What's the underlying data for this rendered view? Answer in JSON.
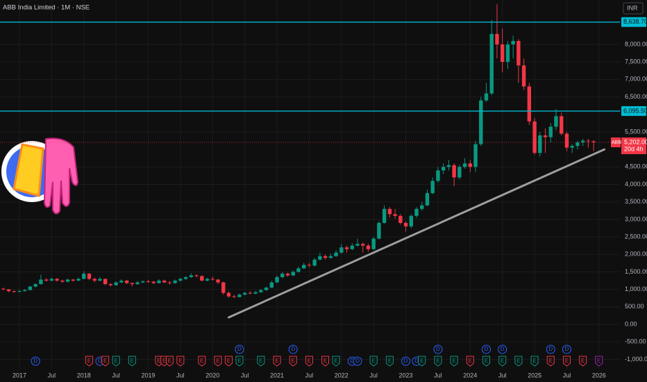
{
  "chart_data": {
    "type": "candlestick",
    "title": "ABB India Limited · 1M · NSE",
    "currency": "INR",
    "up_color": "#089981",
    "down_color": "#f23645",
    "line_color": "#00bcd4",
    "ylim": [
      -1250,
      9270
    ],
    "yticks": [
      {
        "value": -1000,
        "label": "-1,000.00"
      },
      {
        "value": -500,
        "label": "-500.00"
      },
      {
        "value": 0,
        "label": "0.00"
      },
      {
        "value": 500,
        "label": "500.00"
      },
      {
        "value": 1000,
        "label": "1,000.00"
      },
      {
        "value": 1500,
        "label": "1,500.00"
      },
      {
        "value": 2000,
        "label": "2,000.00"
      },
      {
        "value": 2500,
        "label": "2,500.00"
      },
      {
        "value": 3000,
        "label": "3,000.00"
      },
      {
        "value": 3500,
        "label": "3,500.00"
      },
      {
        "value": 4000,
        "label": "4,000.00"
      },
      {
        "value": 4500,
        "label": "4,500.00"
      },
      {
        "value": 5500,
        "label": "5,500.00"
      },
      {
        "value": 6500,
        "label": "6,500.00"
      },
      {
        "value": 7000,
        "label": "7,000.00"
      },
      {
        "value": 7500,
        "label": "7,500.00"
      },
      {
        "value": 8000,
        "label": "8,000.00"
      }
    ],
    "xticks": [
      {
        "value": "2017-01",
        "label": "2017"
      },
      {
        "value": "2017-07",
        "label": "Jul"
      },
      {
        "value": "2018-01",
        "label": "2018"
      },
      {
        "value": "2018-07",
        "label": "Jul"
      },
      {
        "value": "2019-01",
        "label": "2019"
      },
      {
        "value": "2019-07",
        "label": "Jul"
      },
      {
        "value": "2020-01",
        "label": "2020"
      },
      {
        "value": "2020-07",
        "label": "Jul"
      },
      {
        "value": "2021-01",
        "label": "2021"
      },
      {
        "value": "2021-07",
        "label": "Jul"
      },
      {
        "value": "2022-01",
        "label": "2022"
      },
      {
        "value": "2022-07",
        "label": "Jul"
      },
      {
        "value": "2023-01",
        "label": "2023"
      },
      {
        "value": "2023-07",
        "label": "Jul"
      },
      {
        "value": "2024-01",
        "label": "2024"
      },
      {
        "value": "2024-07",
        "label": "Jul"
      },
      {
        "value": "2025-01",
        "label": "2025"
      },
      {
        "value": "2025-07",
        "label": "Jul"
      },
      {
        "value": "2026-01",
        "label": "2026"
      }
    ],
    "x": [
      "2016-10",
      "2016-11",
      "2016-12",
      "2017-01",
      "2017-02",
      "2017-03",
      "2017-04",
      "2017-05",
      "2017-06",
      "2017-07",
      "2017-08",
      "2017-09",
      "2017-10",
      "2017-11",
      "2017-12",
      "2018-01",
      "2018-02",
      "2018-03",
      "2018-04",
      "2018-05",
      "2018-06",
      "2018-07",
      "2018-08",
      "2018-09",
      "2018-10",
      "2018-11",
      "2018-12",
      "2019-01",
      "2019-02",
      "2019-03",
      "2019-04",
      "2019-05",
      "2019-06",
      "2019-07",
      "2019-08",
      "2019-09",
      "2019-10",
      "2019-11",
      "2019-12",
      "2020-01",
      "2020-02",
      "2020-03",
      "2020-04",
      "2020-05",
      "2020-06",
      "2020-07",
      "2020-08",
      "2020-09",
      "2020-10",
      "2020-11",
      "2020-12",
      "2021-01",
      "2021-02",
      "2021-03",
      "2021-04",
      "2021-05",
      "2021-06",
      "2021-07",
      "2021-08",
      "2021-09",
      "2021-10",
      "2021-11",
      "2021-12",
      "2022-01",
      "2022-02",
      "2022-03",
      "2022-04",
      "2022-05",
      "2022-06",
      "2022-07",
      "2022-08",
      "2022-09",
      "2022-10",
      "2022-11",
      "2022-12",
      "2023-01",
      "2023-02",
      "2023-03",
      "2023-04",
      "2023-05",
      "2023-06",
      "2023-07",
      "2023-08",
      "2023-09",
      "2023-10",
      "2023-11",
      "2023-12",
      "2024-01",
      "2024-02",
      "2024-03",
      "2024-04",
      "2024-05",
      "2024-06",
      "2024-07",
      "2024-08",
      "2024-09",
      "2024-10",
      "2024-11",
      "2024-12",
      "2025-01",
      "2025-02",
      "2025-03",
      "2025-04",
      "2025-05",
      "2025-06",
      "2025-07",
      "2025-08",
      "2025-09",
      "2025-10",
      "2025-11",
      "2025-12"
    ],
    "open": [
      1020,
      1000,
      950,
      930,
      950,
      980,
      1080,
      1150,
      1280,
      1250,
      1300,
      1250,
      1220,
      1280,
      1250,
      1300,
      1450,
      1300,
      1250,
      1300,
      1150,
      1120,
      1200,
      1250,
      1180,
      1150,
      1200,
      1230,
      1220,
      1180,
      1250,
      1200,
      1180,
      1250,
      1300,
      1350,
      1400,
      1380,
      1250,
      1300,
      1280,
      1200,
      900,
      800,
      780,
      850,
      900,
      880,
      920,
      980,
      1050,
      1200,
      1350,
      1450,
      1400,
      1500,
      1600,
      1700,
      1680,
      1850,
      1950,
      1900,
      1950,
      2050,
      2200,
      2150,
      2250,
      2300,
      2250,
      2150,
      2450,
      2900,
      3300,
      3150,
      3100,
      2900,
      2800,
      3100,
      3300,
      3400,
      3750,
      4100,
      4400,
      4500,
      4550,
      4200,
      4500,
      4600,
      4500,
      5150,
      6400,
      6600,
      8300,
      8000,
      7500,
      8000,
      8100,
      7400,
      6800,
      5800,
      4900,
      5400,
      5350,
      5650,
      5950,
      5450,
      5050,
      5100,
      5200,
      5250,
      5230
    ],
    "high": [
      1050,
      1010,
      970,
      980,
      1010,
      1100,
      1180,
      1420,
      1320,
      1340,
      1330,
      1280,
      1310,
      1300,
      1340,
      1520,
      1460,
      1340,
      1350,
      1310,
      1180,
      1230,
      1290,
      1270,
      1200,
      1240,
      1260,
      1270,
      1240,
      1290,
      1280,
      1240,
      1280,
      1330,
      1380,
      1460,
      1430,
      1400,
      1330,
      1360,
      1300,
      1220,
      940,
      850,
      880,
      930,
      950,
      960,
      1010,
      1080,
      1240,
      1400,
      1500,
      1480,
      1540,
      1650,
      1760,
      1760,
      1900,
      2050,
      2000,
      2020,
      2120,
      2300,
      2250,
      2320,
      2450,
      2340,
      2300,
      2500,
      2950,
      3400,
      3350,
      3300,
      3150,
      2950,
      3150,
      3350,
      3500,
      3850,
      4200,
      4500,
      4600,
      4700,
      4600,
      4560,
      4750,
      4700,
      5250,
      6500,
      6900,
      8700,
      9150,
      8450,
      8100,
      8250,
      8150,
      7600,
      6900,
      5900,
      5500,
      5600,
      5750,
      6150,
      6050,
      5500,
      5150,
      5250,
      5300,
      5300,
      5260
    ],
    "low": [
      980,
      920,
      900,
      910,
      940,
      970,
      1060,
      1140,
      1220,
      1230,
      1220,
      1190,
      1200,
      1220,
      1240,
      1290,
      1260,
      1200,
      1230,
      1120,
      1080,
      1100,
      1180,
      1150,
      1080,
      1130,
      1180,
      1190,
      1150,
      1170,
      1180,
      1130,
      1160,
      1220,
      1270,
      1330,
      1340,
      1230,
      1230,
      1250,
      1150,
      850,
      760,
      750,
      770,
      830,
      860,
      860,
      900,
      960,
      1040,
      1180,
      1320,
      1360,
      1380,
      1480,
      1580,
      1640,
      1660,
      1830,
      1850,
      1880,
      1930,
      2020,
      2050,
      2120,
      2230,
      2050,
      2080,
      2130,
      2430,
      2880,
      3050,
      3020,
      2850,
      2650,
      2750,
      3050,
      3250,
      3380,
      3720,
      4050,
      4300,
      4400,
      3950,
      4150,
      4450,
      4350,
      4350,
      5100,
      6350,
      6550,
      7600,
      7200,
      7300,
      7600,
      6900,
      6700,
      5700,
      4850,
      4800,
      4900,
      5200,
      5550,
      5400,
      4950,
      4900,
      5000,
      5100,
      5050,
      4950
    ],
    "close": [
      1000,
      950,
      930,
      950,
      980,
      1080,
      1150,
      1280,
      1250,
      1300,
      1250,
      1220,
      1280,
      1250,
      1300,
      1450,
      1300,
      1250,
      1300,
      1150,
      1120,
      1200,
      1250,
      1180,
      1150,
      1200,
      1230,
      1220,
      1180,
      1250,
      1200,
      1180,
      1250,
      1300,
      1350,
      1400,
      1380,
      1250,
      1300,
      1280,
      1200,
      900,
      800,
      780,
      850,
      900,
      880,
      920,
      980,
      1050,
      1200,
      1350,
      1450,
      1400,
      1500,
      1600,
      1700,
      1680,
      1850,
      1950,
      1900,
      1950,
      2050,
      2200,
      2150,
      2250,
      2300,
      2250,
      2150,
      2450,
      2900,
      3300,
      3150,
      3100,
      2900,
      2800,
      3100,
      3300,
      3400,
      3750,
      4100,
      4400,
      4500,
      4550,
      4200,
      4500,
      4600,
      4500,
      5150,
      6400,
      6600,
      8300,
      8000,
      7500,
      8000,
      8100,
      7400,
      6800,
      5800,
      4900,
      5400,
      5350,
      5650,
      5950,
      5450,
      5050,
      5100,
      5200,
      5250,
      5230,
      5202
    ],
    "hlines": [
      {
        "value": 8638.7,
        "label": "8,638.70"
      },
      {
        "value": 6095.5,
        "label": "6,095.50"
      }
    ],
    "last": {
      "name": "ABB",
      "value": 5202,
      "label": "5,202.00",
      "countdown": "20d 4h"
    },
    "trendline": {
      "x": [
        "2020-04",
        "2026-02"
      ],
      "y": [
        200,
        5000
      ]
    },
    "events": [
      {
        "label": "D",
        "date": "2017-04",
        "color": "#2962ff"
      },
      {
        "label": "E",
        "date": "2018-02",
        "color": "#f23645"
      },
      {
        "label": "D",
        "date": "2018-04",
        "color": "#2962ff"
      },
      {
        "label": "E",
        "date": "2018-05",
        "color": "#f23645"
      },
      {
        "label": "E",
        "date": "2018-07",
        "color": "#089981"
      },
      {
        "label": "E",
        "date": "2018-10",
        "color": "#089981"
      },
      {
        "label": "E",
        "date": "2019-03",
        "color": "#f23645"
      },
      {
        "label": "E",
        "date": "2019-04",
        "color": "#f23645"
      },
      {
        "label": "E",
        "date": "2019-05",
        "color": "#f23645"
      },
      {
        "label": "E",
        "date": "2019-07",
        "color": "#f23645"
      },
      {
        "label": "E",
        "date": "2019-11",
        "color": "#f23645"
      },
      {
        "label": "E",
        "date": "2020-02",
        "color": "#f23645"
      },
      {
        "label": "E",
        "date": "2020-04",
        "color": "#f23645"
      },
      {
        "label": "E",
        "date": "2020-06",
        "color": "#089981"
      },
      {
        "label": "D",
        "date": "2020-06",
        "color": "#2962ff"
      },
      {
        "label": "E",
        "date": "2020-10",
        "color": "#089981"
      },
      {
        "label": "E",
        "date": "2021-01",
        "color": "#f23645"
      },
      {
        "label": "E",
        "date": "2021-04",
        "color": "#f23645"
      },
      {
        "label": "D",
        "date": "2021-04",
        "color": "#2962ff"
      },
      {
        "label": "E",
        "date": "2021-07",
        "color": "#f23645"
      },
      {
        "label": "E",
        "date": "2021-10",
        "color": "#f23645"
      },
      {
        "label": "E",
        "date": "2021-12",
        "color": "#089981"
      },
      {
        "label": "D",
        "date": "2022-03",
        "color": "#2962ff"
      },
      {
        "label": "D",
        "date": "2022-04",
        "color": "#2962ff"
      },
      {
        "label": "E",
        "date": "2022-07",
        "color": "#089981"
      },
      {
        "label": "E",
        "date": "2022-10",
        "color": "#089981"
      },
      {
        "label": "D",
        "date": "2023-01",
        "color": "#2962ff"
      },
      {
        "label": "D",
        "date": "2023-03",
        "color": "#2962ff"
      },
      {
        "label": "E",
        "date": "2023-04",
        "color": "#089981"
      },
      {
        "label": "E",
        "date": "2023-07",
        "color": "#089981"
      },
      {
        "label": "D",
        "date": "2023-07",
        "color": "#2962ff"
      },
      {
        "label": "E",
        "date": "2023-10",
        "color": "#089981"
      },
      {
        "label": "E",
        "date": "2024-01",
        "color": "#f23645"
      },
      {
        "label": "E",
        "date": "2024-04",
        "color": "#089981"
      },
      {
        "label": "D",
        "date": "2024-04",
        "color": "#2962ff"
      },
      {
        "label": "E",
        "date": "2024-07",
        "color": "#089981"
      },
      {
        "label": "D",
        "date": "2024-07",
        "color": "#2962ff"
      },
      {
        "label": "E",
        "date": "2024-10",
        "color": "#089981"
      },
      {
        "label": "E",
        "date": "2025-01",
        "color": "#089981"
      },
      {
        "label": "E",
        "date": "2025-04",
        "color": "#f23645"
      },
      {
        "label": "D",
        "date": "2025-04",
        "color": "#2962ff"
      },
      {
        "label": "E",
        "date": "2025-07",
        "color": "#f23645"
      },
      {
        "label": "D",
        "date": "2025-07",
        "color": "#2962ff"
      },
      {
        "label": "E",
        "date": "2025-10",
        "color": "#f23645"
      },
      {
        "label": "E",
        "date": "2026-01",
        "color": "#9c27b0"
      }
    ]
  }
}
